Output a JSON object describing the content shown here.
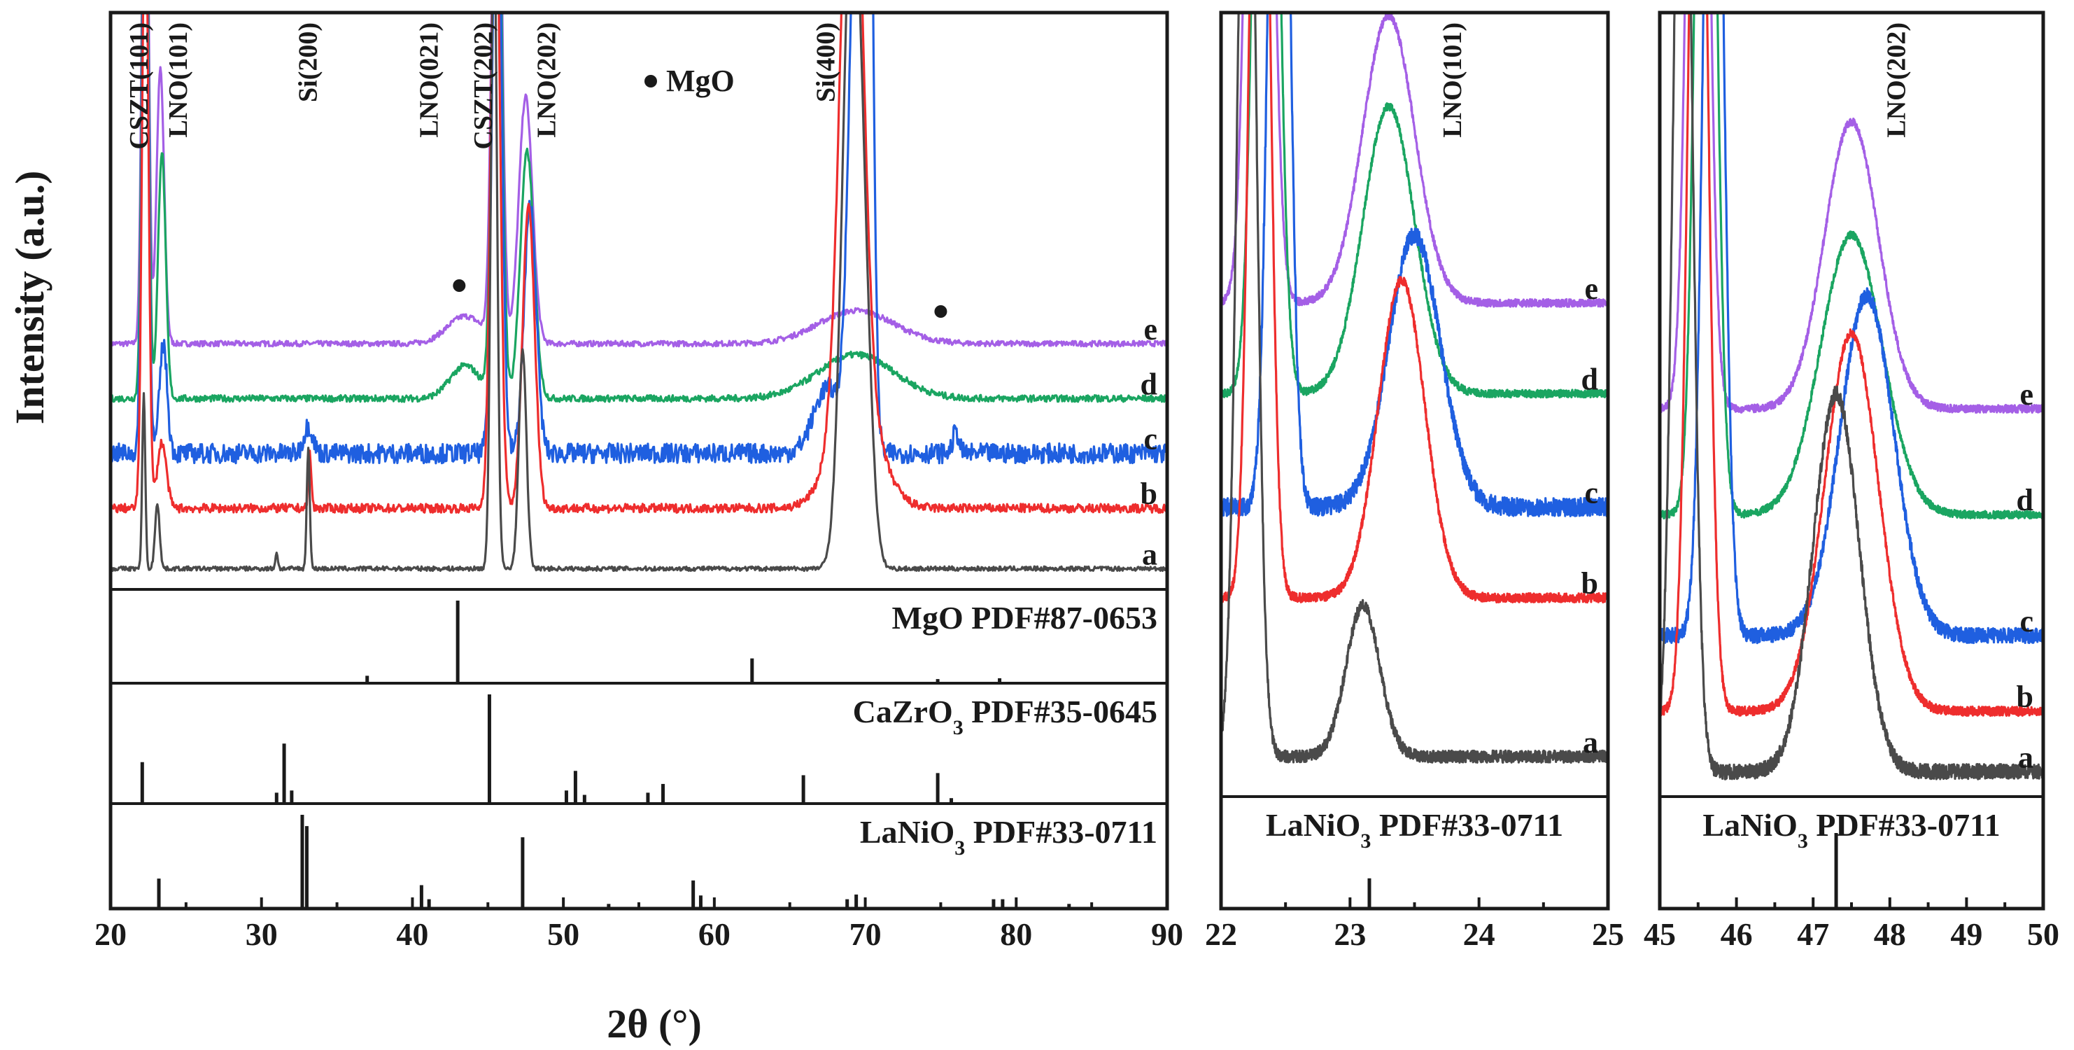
{
  "chart_data": {
    "type": "line",
    "ylabel": "Intensity (a.u.)",
    "xlabel": "2θ (°)",
    "colors": {
      "a": "#4a4a4a",
      "b": "#ee2d2d",
      "c": "#1f5fe0",
      "d": "#1aa561",
      "e": "#a45fe6"
    },
    "legend_mgo": "MgO",
    "panels": [
      {
        "name": "main",
        "xlim": [
          20,
          90
        ],
        "xticks": [
          "20",
          "30",
          "40",
          "50",
          "60",
          "70",
          "80",
          "90"
        ],
        "series": [
          {
            "name": "a",
            "baseline": 0.02,
            "noise": 0.004,
            "peaks": [
              [
                22.2,
                0.32,
                0.1
              ],
              [
                23.1,
                0.12,
                0.15
              ],
              [
                31,
                0.03,
                0.08
              ],
              [
                33.1,
                0.22,
                0.1
              ],
              [
                45.4,
                1.2,
                0.2
              ],
              [
                47.3,
                0.4,
                0.25
              ],
              [
                69.1,
                1.2,
                0.6
              ],
              [
                70,
                0.3,
                0.5
              ]
            ]
          },
          {
            "name": "b",
            "baseline": 0.13,
            "noise": 0.008,
            "peaks": [
              [
                22.3,
                1.2,
                0.2
              ],
              [
                23.4,
                0.12,
                0.3
              ],
              [
                33.2,
                0.1,
                0.1
              ],
              [
                45.5,
                1.2,
                0.3
              ],
              [
                47.7,
                0.55,
                0.4
              ],
              [
                69.1,
                1.2,
                0.7
              ],
              [
                69.4,
                0.2,
                1.5
              ]
            ]
          },
          {
            "name": "c",
            "baseline": 0.23,
            "noise": 0.018,
            "peaks": [
              [
                22.3,
                1.2,
                0.2
              ],
              [
                23.5,
                0.2,
                0.25
              ],
              [
                33.1,
                0.05,
                0.3
              ],
              [
                45.6,
                1.2,
                0.3
              ],
              [
                47.8,
                0.45,
                0.4
              ],
              [
                67.5,
                0.12,
                0.9
              ],
              [
                69.5,
                1.2,
                0.5
              ],
              [
                70.2,
                1.2,
                0.3
              ],
              [
                76,
                0.04,
                0.2
              ]
            ]
          },
          {
            "name": "d",
            "baseline": 0.33,
            "noise": 0.006,
            "peaks": [
              [
                22.3,
                1.2,
                0.2
              ],
              [
                23.4,
                0.45,
                0.25
              ],
              [
                43.5,
                0.06,
                1
              ],
              [
                45.6,
                1.2,
                0.3
              ],
              [
                47.6,
                0.45,
                0.45
              ],
              [
                69.4,
                0.08,
                2.5
              ]
            ]
          },
          {
            "name": "e",
            "baseline": 0.43,
            "noise": 0.005,
            "peaks": [
              [
                22.3,
                1.2,
                0.2
              ],
              [
                23.3,
                0.5,
                0.25
              ],
              [
                43.5,
                0.05,
                1.2
              ],
              [
                45.6,
                1.2,
                0.3
              ],
              [
                47.5,
                0.45,
                0.45
              ],
              [
                69.4,
                0.06,
                2.5
              ]
            ]
          }
        ],
        "series_labels": [
          "e",
          "d",
          "c",
          "b",
          "a"
        ],
        "annotations": [
          {
            "text": "CSZT(101)",
            "x": 22.0,
            "rotated": true
          },
          {
            "text": "LNO(101)",
            "x": 24.6,
            "rotated": true
          },
          {
            "text": "Si(200)",
            "x": 33.2,
            "rotated": true
          },
          {
            "text": "LNO(021)",
            "x": 41.2,
            "rotated": true
          },
          {
            "text": "CSZT(202)",
            "x": 44.8,
            "rotated": true
          },
          {
            "text": "LNO(202)",
            "x": 49.0,
            "rotated": true
          },
          {
            "text": "Si(400)",
            "x": 67.5,
            "rotated": true
          }
        ],
        "mgo_markers": [
          43.1,
          75.0
        ],
        "reference_panels": [
          {
            "title": "MgO PDF#87-0653",
            "formula": "MgO",
            "subscript": "",
            "suffix": " PDF#87-0653",
            "lines": [
              [
                37,
                0.09
              ],
              [
                43.0,
                1.0
              ],
              [
                62.5,
                0.3
              ],
              [
                74.8,
                0.05
              ],
              [
                78.9,
                0.06
              ]
            ]
          },
          {
            "title": "CaZrO3 PDF#35-0645",
            "formula": "CaZrO",
            "subscript": "3",
            "suffix": " PDF#35-0645",
            "lines": [
              [
                22.1,
                0.38
              ],
              [
                31.0,
                0.1
              ],
              [
                31.5,
                0.55
              ],
              [
                32.0,
                0.12
              ],
              [
                45.1,
                1.0
              ],
              [
                50.2,
                0.12
              ],
              [
                50.8,
                0.3
              ],
              [
                51.4,
                0.08
              ],
              [
                55.6,
                0.1
              ],
              [
                56.6,
                0.18
              ],
              [
                65.9,
                0.26
              ],
              [
                74.8,
                0.28
              ],
              [
                75.7,
                0.05
              ]
            ]
          },
          {
            "title": "LaNiO3 PDF#33-0711",
            "formula": "LaNiO",
            "subscript": "3",
            "suffix": " PDF#33-0711",
            "lines": [
              [
                23.2,
                0.32
              ],
              [
                32.7,
                1.0
              ],
              [
                33.0,
                0.88
              ],
              [
                40.6,
                0.25
              ],
              [
                41.1,
                0.1
              ],
              [
                47.3,
                0.76
              ],
              [
                53,
                0.05
              ],
              [
                58.6,
                0.3
              ],
              [
                59.1,
                0.14
              ],
              [
                68.8,
                0.1
              ],
              [
                69.4,
                0.15
              ],
              [
                78.5,
                0.1
              ],
              [
                79.1,
                0.1
              ],
              [
                83.5,
                0.05
              ]
            ]
          }
        ]
      },
      {
        "name": "zoom-lno101",
        "xlim": [
          22,
          25
        ],
        "xticks": [
          "22",
          "23",
          "24",
          "25"
        ],
        "annotation": "LNO(101)",
        "series": [
          {
            "name": "a",
            "baseline": 0.04,
            "noise": 0.008,
            "peaks": [
              [
                22.2,
                1.5,
                0.07
              ],
              [
                23.1,
                0.2,
                0.13
              ]
            ]
          },
          {
            "name": "b",
            "baseline": 0.25,
            "noise": 0.006,
            "peaks": [
              [
                22.3,
                1.5,
                0.07
              ],
              [
                23.4,
                0.42,
                0.18
              ]
            ]
          },
          {
            "name": "c",
            "baseline": 0.37,
            "noise": 0.012,
            "peaks": [
              [
                22.45,
                1.5,
                0.07
              ],
              [
                23.5,
                0.36,
                0.2
              ]
            ]
          },
          {
            "name": "d",
            "baseline": 0.52,
            "noise": 0.005,
            "peaks": [
              [
                22.35,
                1.5,
                0.08
              ],
              [
                23.3,
                0.38,
                0.2
              ]
            ]
          },
          {
            "name": "e",
            "baseline": 0.64,
            "noise": 0.005,
            "peaks": [
              [
                22.3,
                1.5,
                0.08
              ],
              [
                23.3,
                0.38,
                0.2
              ]
            ]
          }
        ],
        "series_labels": [
          "e",
          "d",
          "c",
          "b",
          "a"
        ],
        "reference": {
          "title": "LaNiO3 PDF#33-0711",
          "formula": "LaNiO",
          "subscript": "3",
          "suffix": " PDF#33-0711",
          "lines": [
            [
              23.15,
              0.3
            ]
          ]
        }
      },
      {
        "name": "zoom-lno202",
        "xlim": [
          45,
          50
        ],
        "xticks": [
          "45",
          "46",
          "47",
          "48",
          "49",
          "50"
        ],
        "annotation": "LNO(202)",
        "series": [
          {
            "name": "a",
            "baseline": 0.02,
            "noise": 0.01,
            "peaks": [
              [
                45.3,
                1.5,
                0.12
              ],
              [
                47.3,
                0.5,
                0.3
              ]
            ]
          },
          {
            "name": "b",
            "baseline": 0.1,
            "noise": 0.006,
            "peaks": [
              [
                45.5,
                1.5,
                0.12
              ],
              [
                47.5,
                0.5,
                0.35
              ]
            ]
          },
          {
            "name": "c",
            "baseline": 0.2,
            "noise": 0.01,
            "peaks": [
              [
                45.7,
                1.5,
                0.12
              ],
              [
                47.7,
                0.45,
                0.35
              ]
            ]
          },
          {
            "name": "d",
            "baseline": 0.36,
            "noise": 0.005,
            "peaks": [
              [
                45.6,
                1.5,
                0.12
              ],
              [
                47.5,
                0.37,
                0.4
              ]
            ]
          },
          {
            "name": "e",
            "baseline": 0.5,
            "noise": 0.005,
            "peaks": [
              [
                45.5,
                1.5,
                0.12
              ],
              [
                47.5,
                0.38,
                0.35
              ]
            ]
          }
        ],
        "series_labels": [
          "e",
          "d",
          "c",
          "b",
          "a"
        ],
        "reference": {
          "title": "LaNiO3 PDF#33-0711",
          "formula": "LaNiO",
          "subscript": "3",
          "suffix": " PDF#33-0711",
          "lines": [
            [
              47.3,
              0.75
            ]
          ]
        }
      }
    ]
  }
}
